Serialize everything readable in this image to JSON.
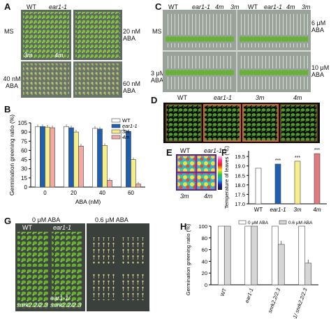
{
  "panels": {
    "A": {
      "letter": "A",
      "col1": "WT",
      "col2": "ear1-1",
      "row_labels": [
        "MS",
        "40 nM ABA"
      ],
      "right_labels": [
        "20 nM ABA",
        "60 nM ABA"
      ],
      "inside": [
        "3m",
        "4m"
      ]
    },
    "B": {
      "letter": "B"
    },
    "C": {
      "letter": "C",
      "col_labels": [
        "WT",
        "ear1-1",
        "4m",
        "3m"
      ],
      "left_labels": [
        "MS",
        "3 μM ABA"
      ],
      "right_labels": [
        "6 μM ABA",
        "10 μM ABA"
      ]
    },
    "D": {
      "letter": "D",
      "col_labels": [
        "WT",
        "ear1-1",
        "3m",
        "4m"
      ]
    },
    "E": {
      "letter": "E",
      "top": [
        "WT",
        "ear1-1"
      ],
      "bottom": [
        "3m",
        "4m"
      ]
    },
    "F": {
      "letter": "F",
      "significance": [
        "***",
        "***",
        "***"
      ]
    },
    "G": {
      "letter": "G",
      "left_title": "0 μM ABA",
      "right_title": "0.6 μM ABA",
      "labels": [
        "WT",
        "ear1-1",
        "snrk2.2/2.3",
        "ear1-1/ snrk2.2/2.3"
      ]
    },
    "H": {
      "letter": "H"
    }
  },
  "colors": {
    "white_bar": "#ffffff",
    "blue_bar": "#1f5fb0",
    "yellow_bar": "#f5ee8a",
    "pink_bar": "#f0a9a3",
    "grey_bar": "#d6d6d6",
    "red_bar": "#e07a80",
    "plant_green": "#5fa52e",
    "plate_bg": "#4a5a52",
    "black_bg": "#0b0b0b"
  },
  "chart_data": [
    {
      "panel": "B",
      "type": "bar",
      "ylabel": "Germination greening ratio (%)",
      "xlabel": "ABA (nM)",
      "categories": [
        "0",
        "20",
        "40",
        "60"
      ],
      "ylim": [
        0,
        105
      ],
      "yticks": [
        "0",
        "15",
        "30",
        "45",
        "60",
        "75",
        "90",
        "105"
      ],
      "legend": [
        "WT",
        "ear1-1",
        "3m",
        "4m"
      ],
      "series": [
        {
          "name": "WT",
          "values": [
            99,
            99,
            96,
            93
          ]
        },
        {
          "name": "ear1-1",
          "values": [
            99,
            97,
            95,
            91
          ]
        },
        {
          "name": "3m",
          "values": [
            98,
            90,
            68,
            45
          ]
        },
        {
          "name": "4m",
          "values": [
            97,
            67,
            11,
            5
          ]
        }
      ]
    },
    {
      "panel": "F",
      "type": "bar",
      "ylabel": "Temperature of leaves (℃)",
      "categories": [
        "WT",
        "ear1-1",
        "3m",
        "4m"
      ],
      "ylim": [
        17.0,
        19.8
      ],
      "yticks": [
        "17.0",
        "17.5",
        "18.0",
        "18.5",
        "19.0",
        "19.5"
      ],
      "values": [
        18.88,
        19.1,
        19.25,
        19.65
      ]
    },
    {
      "panel": "H",
      "type": "bar",
      "ylabel": "Germination greening ratio (%)",
      "categories": [
        "WT",
        "ear1-1",
        "snrk2.2/2.3",
        "ear1-1/ snrk2.2/2.3"
      ],
      "ylim": [
        0,
        100
      ],
      "yticks": [
        "0",
        "20",
        "40",
        "60",
        "80",
        "100"
      ],
      "legend": [
        "0 μM ABA",
        "0.6 μM ABA"
      ],
      "series": [
        {
          "name": "0 μM ABA",
          "values": [
            100,
            100,
            100,
            100
          ]
        },
        {
          "name": "0.6 μM ABA",
          "values": [
            100,
            100,
            69,
            37
          ]
        }
      ]
    }
  ]
}
